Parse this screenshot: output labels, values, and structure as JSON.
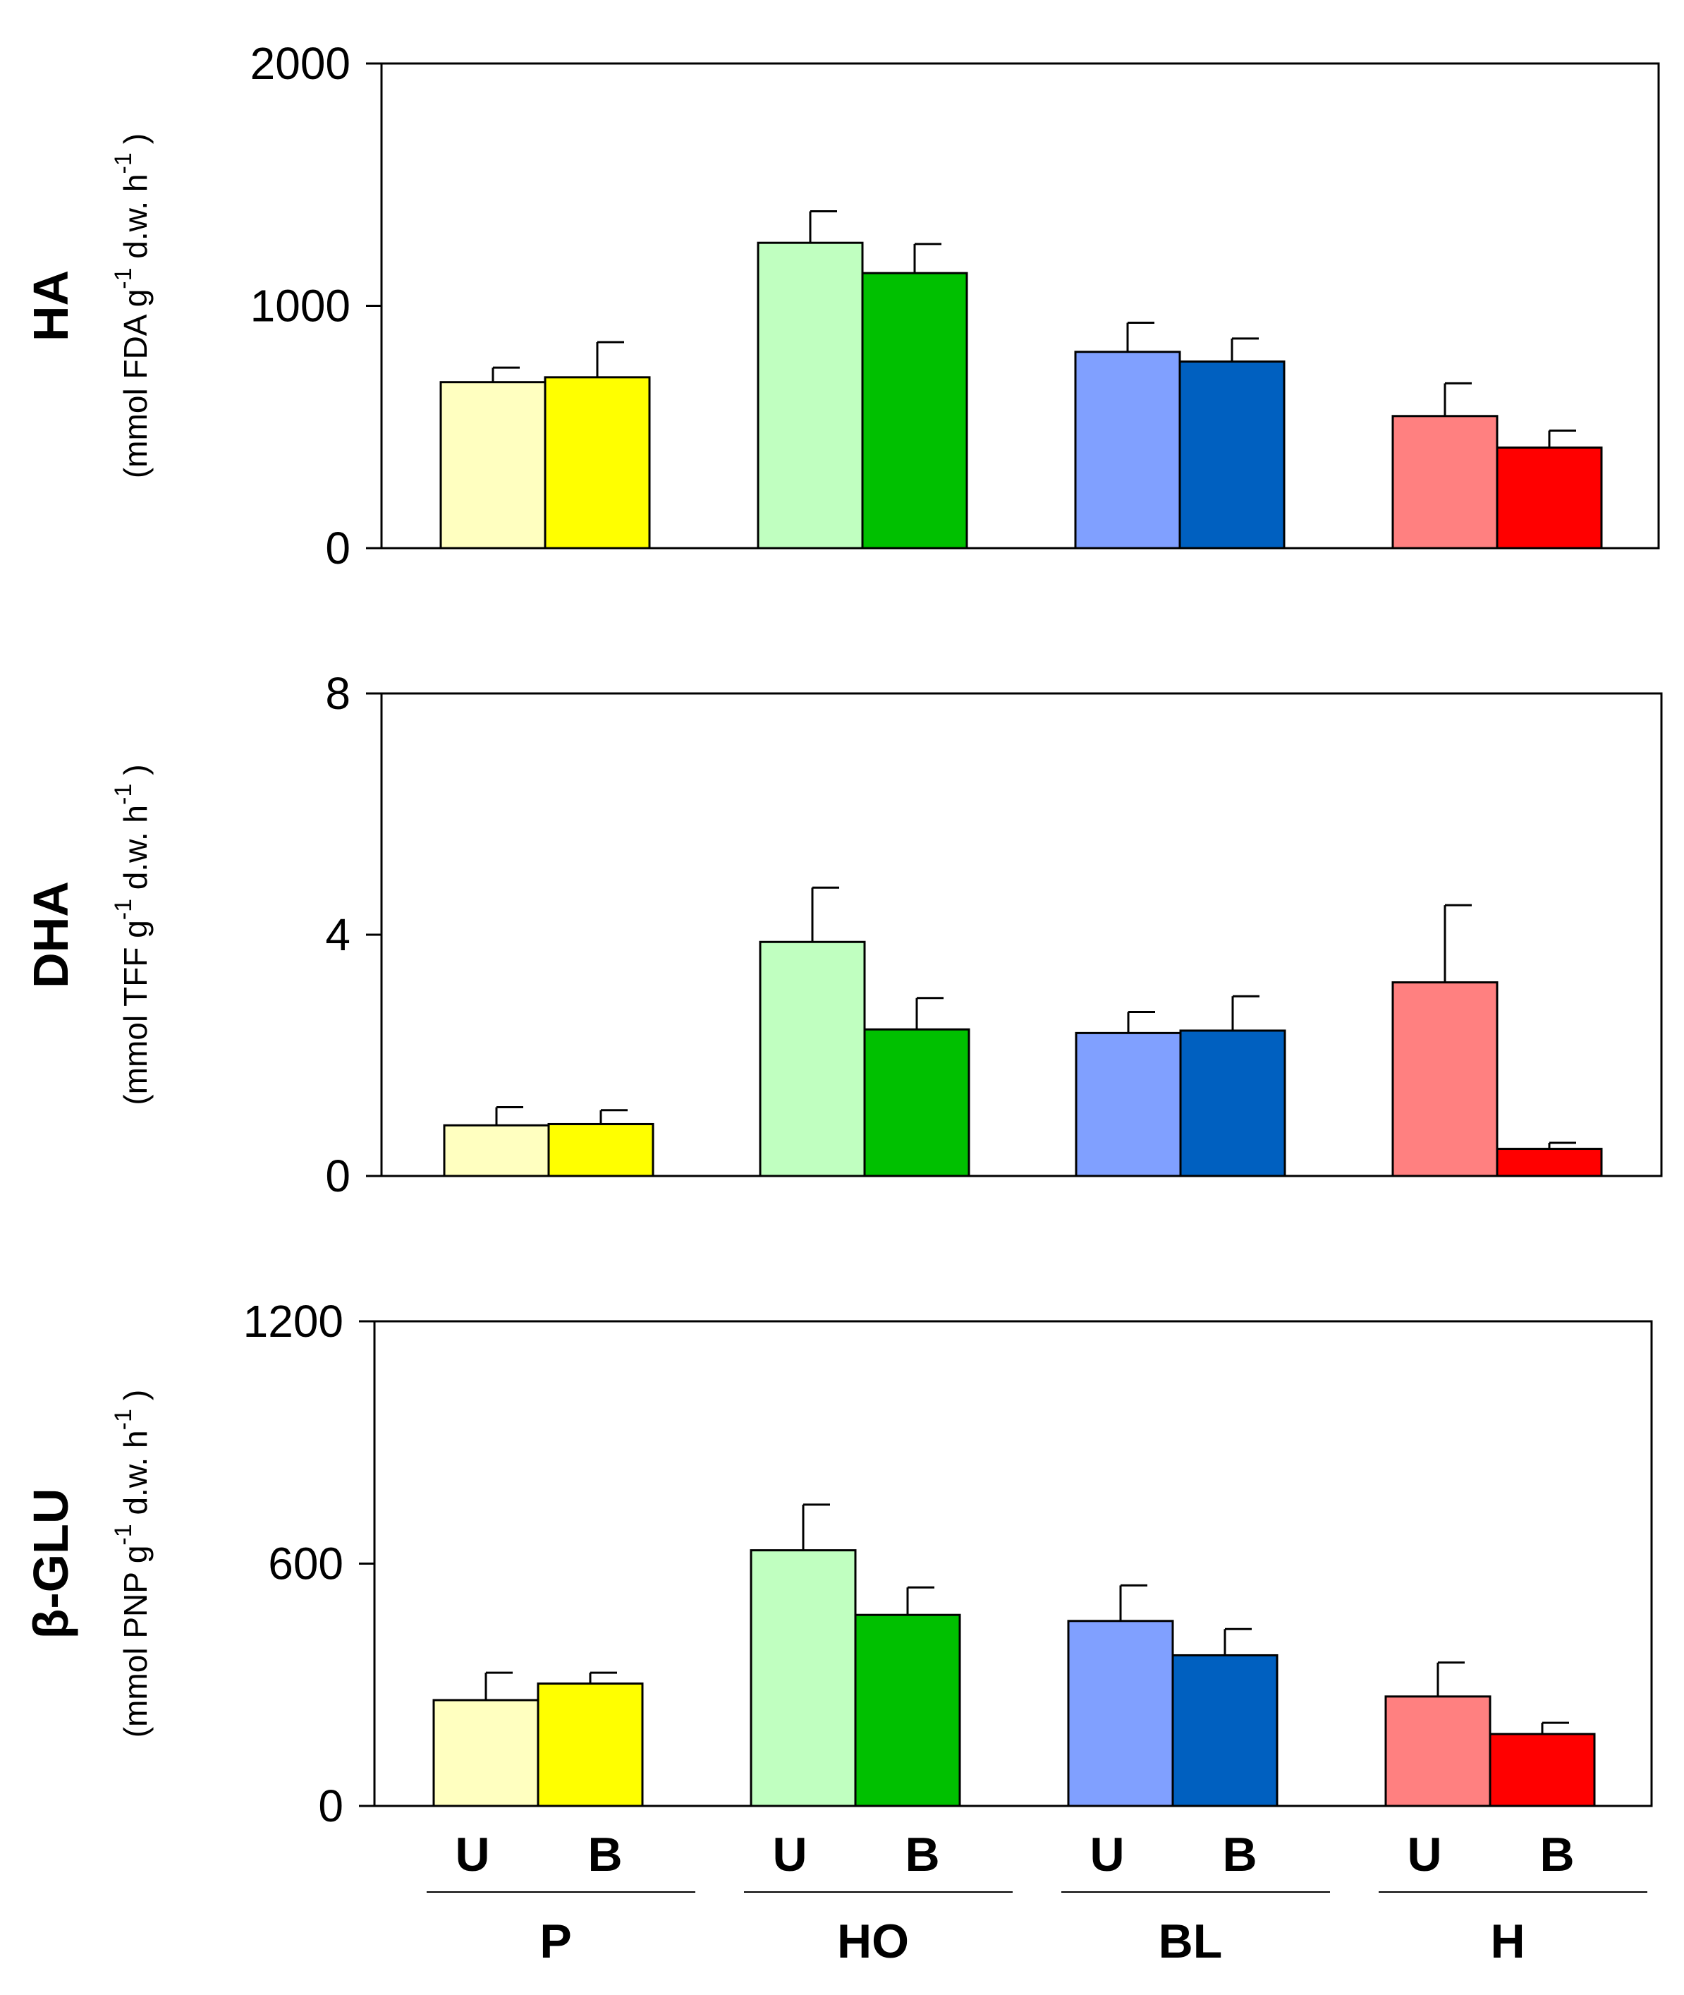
{
  "chart_data": [
    {
      "type": "bar",
      "title": "",
      "ylabel": "HA",
      "yunit_text": "(mmol FDA g",
      "yunit_sup1": "-1",
      "yunit_mid": " d.w. h",
      "yunit_sup2": "-1",
      "yunit_end": ")",
      "ylim": [
        0,
        2000
      ],
      "yticks": [
        "0",
        "1000",
        "2000"
      ],
      "categories": [
        "P",
        "HO",
        "BL",
        "H"
      ],
      "series": [
        {
          "name": "U",
          "values": [
            685,
            1260,
            810,
            545
          ],
          "errors": [
            60,
            130,
            120,
            135
          ]
        },
        {
          "name": "B",
          "values": [
            705,
            1135,
            770,
            415
          ],
          "errors": [
            145,
            120,
            95,
            70
          ]
        }
      ]
    },
    {
      "type": "bar",
      "title": "",
      "ylabel": "DHA",
      "yunit_text": "(mmol TFF g",
      "yunit_sup1": "-1",
      "yunit_mid": " d.w. h",
      "yunit_sup2": "-1",
      "yunit_end": ")",
      "ylim": [
        0,
        8
      ],
      "yticks": [
        "0",
        "4",
        "8"
      ],
      "categories": [
        "P",
        "HO",
        "BL",
        "H"
      ],
      "series": [
        {
          "name": "U",
          "values": [
            0.84,
            3.88,
            2.37,
            3.21
          ],
          "errors": [
            0.3,
            0.9,
            0.35,
            1.28
          ]
        },
        {
          "name": "B",
          "values": [
            0.86,
            2.43,
            2.41,
            0.45
          ],
          "errors": [
            0.23,
            0.52,
            0.57,
            0.1
          ]
        }
      ]
    },
    {
      "type": "bar",
      "title": "",
      "ylabel": "β-GLU",
      "yunit_text": "(mmol PNP g",
      "yunit_sup1": "-1",
      "yunit_mid": " d.w. h",
      "yunit_sup2": "-1",
      "yunit_end": ")",
      "ylim": [
        0,
        1200
      ],
      "yticks": [
        "0",
        "600",
        "1200"
      ],
      "categories": [
        "P",
        "HO",
        "BL",
        "H"
      ],
      "series": [
        {
          "name": "U",
          "values": [
            262,
            633,
            458,
            271
          ],
          "errors": [
            68,
            113,
            88,
            84
          ]
        },
        {
          "name": "B",
          "values": [
            303,
            473,
            373,
            178
          ],
          "errors": [
            27,
            68,
            65,
            28
          ]
        }
      ]
    }
  ],
  "series_labels": [
    "U",
    "B"
  ],
  "group_labels": [
    "P",
    "HO",
    "BL",
    "H"
  ],
  "colors": {
    "P": {
      "U": "#ffffc0",
      "B": "#ffff00"
    },
    "HO": {
      "U": "#c0ffc0",
      "B": "#00c000"
    },
    "BL": {
      "U": "#80a0ff",
      "B": "#0060c0"
    },
    "H": {
      "U": "#ff8080",
      "B": "#ff0000"
    }
  }
}
